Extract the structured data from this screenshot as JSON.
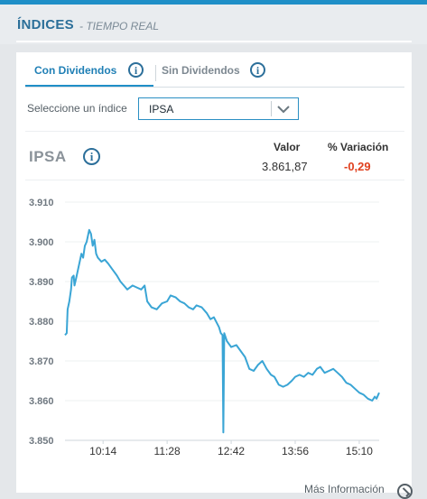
{
  "header": {
    "title": "ÍNDICES",
    "subtitle": "- TIEMPO REAL"
  },
  "tabs": [
    {
      "label": "Con Dividendos",
      "active": true
    },
    {
      "label": "Sin Dividendos",
      "active": false
    }
  ],
  "selector": {
    "label": "Seleccione un índice",
    "value": "IPSA"
  },
  "index": {
    "name": "IPSA",
    "valor_label": "Valor",
    "variacion_label": "% Variación",
    "valor": "3.861,87",
    "variacion": "-0,29"
  },
  "colors": {
    "accent": "#1f8fc7",
    "line": "#3aa5d5",
    "negative": "#e0411f"
  },
  "chart_data": {
    "type": "line",
    "y_ticks": [
      "3.910",
      "3.900",
      "3.890",
      "3.880",
      "3.870",
      "3.860",
      "3.850"
    ],
    "x_ticks": [
      "10:14",
      "11:28",
      "12:42",
      "13:56",
      "15:10"
    ],
    "ylim": [
      3850,
      3910
    ],
    "xlim": [
      "09:30",
      "15:33"
    ],
    "grid": "horizontal",
    "series": [
      {
        "values": [
          [
            "09:30",
            3876.5
          ],
          [
            "09:32",
            3877.0
          ],
          [
            "09:33",
            3883.0
          ],
          [
            "09:35",
            3885.0
          ],
          [
            "09:37",
            3888.0
          ],
          [
            "09:38",
            3891.0
          ],
          [
            "09:40",
            3891.5
          ],
          [
            "09:41",
            3889.0
          ],
          [
            "09:43",
            3891.0
          ],
          [
            "09:45",
            3893.0
          ],
          [
            "09:47",
            3895.0
          ],
          [
            "09:49",
            3897.0
          ],
          [
            "09:51",
            3896.0
          ],
          [
            "09:53",
            3899.0
          ],
          [
            "09:55",
            3900.0
          ],
          [
            "09:58",
            3903.0
          ],
          [
            "10:00",
            3902.0
          ],
          [
            "10:02",
            3899.0
          ],
          [
            "10:04",
            3900.5
          ],
          [
            "10:06",
            3897.0
          ],
          [
            "10:08",
            3896.0
          ],
          [
            "10:12",
            3895.0
          ],
          [
            "10:16",
            3895.5
          ],
          [
            "10:20",
            3894.5
          ],
          [
            "10:25",
            3893.0
          ],
          [
            "10:30",
            3891.5
          ],
          [
            "10:34",
            3890.0
          ],
          [
            "10:38",
            3889.0
          ],
          [
            "10:42",
            3888.0
          ],
          [
            "10:48",
            3889.0
          ],
          [
            "10:53",
            3888.5
          ],
          [
            "10:58",
            3888.0
          ],
          [
            "11:02",
            3889.0
          ],
          [
            "11:05",
            3885.0
          ],
          [
            "11:10",
            3883.5
          ],
          [
            "11:16",
            3883.0
          ],
          [
            "11:22",
            3884.5
          ],
          [
            "11:28",
            3885.0
          ],
          [
            "11:32",
            3886.5
          ],
          [
            "11:38",
            3886.0
          ],
          [
            "11:43",
            3885.0
          ],
          [
            "11:48",
            3884.5
          ],
          [
            "11:53",
            3883.5
          ],
          [
            "11:58",
            3883.0
          ],
          [
            "12:02",
            3884.0
          ],
          [
            "12:08",
            3883.5
          ],
          [
            "12:14",
            3882.0
          ],
          [
            "12:18",
            3880.5
          ],
          [
            "12:22",
            3881.0
          ],
          [
            "12:28",
            3878.5
          ],
          [
            "12:30",
            3877.0
          ],
          [
            "12:32",
            3876.5
          ],
          [
            "12:33",
            3852.0
          ],
          [
            "12:34",
            3877.0
          ],
          [
            "12:37",
            3875.0
          ],
          [
            "12:42",
            3873.5
          ],
          [
            "12:48",
            3874.0
          ],
          [
            "12:53",
            3872.5
          ],
          [
            "12:58",
            3871.0
          ],
          [
            "13:03",
            3868.0
          ],
          [
            "13:08",
            3867.5
          ],
          [
            "13:13",
            3869.0
          ],
          [
            "13:18",
            3870.0
          ],
          [
            "13:23",
            3868.0
          ],
          [
            "13:28",
            3866.5
          ],
          [
            "13:32",
            3866.0
          ],
          [
            "13:37",
            3864.0
          ],
          [
            "13:42",
            3863.5
          ],
          [
            "13:47",
            3864.0
          ],
          [
            "13:52",
            3865.0
          ],
          [
            "13:56",
            3866.0
          ],
          [
            "14:01",
            3866.5
          ],
          [
            "14:06",
            3866.0
          ],
          [
            "14:11",
            3867.0
          ],
          [
            "14:16",
            3866.5
          ],
          [
            "14:21",
            3868.0
          ],
          [
            "14:25",
            3868.5
          ],
          [
            "14:30",
            3867.0
          ],
          [
            "14:35",
            3867.5
          ],
          [
            "14:40",
            3868.0
          ],
          [
            "14:45",
            3867.0
          ],
          [
            "14:50",
            3866.0
          ],
          [
            "14:55",
            3864.5
          ],
          [
            "15:00",
            3864.0
          ],
          [
            "15:05",
            3863.0
          ],
          [
            "15:10",
            3862.0
          ],
          [
            "15:15",
            3861.5
          ],
          [
            "15:20",
            3860.5
          ],
          [
            "15:25",
            3860.0
          ],
          [
            "15:28",
            3861.0
          ],
          [
            "15:30",
            3860.5
          ],
          [
            "15:33",
            3862.0
          ]
        ]
      }
    ]
  },
  "footer": {
    "more_label": "Más Información"
  }
}
